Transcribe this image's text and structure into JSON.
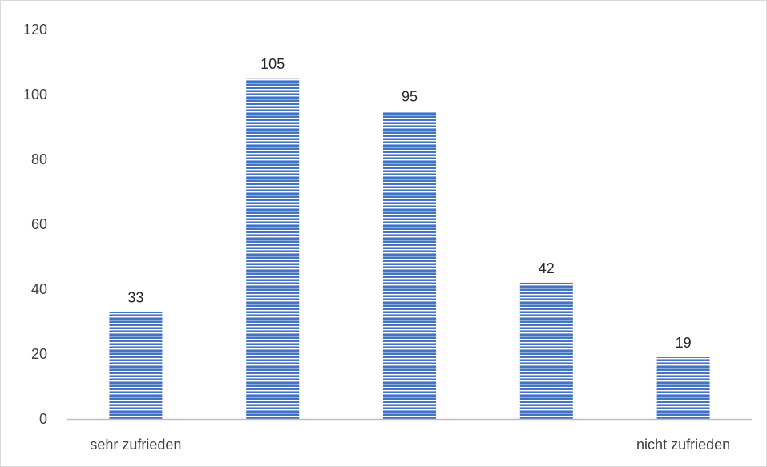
{
  "chart_data": {
    "type": "bar",
    "title": "",
    "xlabel": "",
    "ylabel": "",
    "categories": [
      "sehr zufrieden",
      "",
      "",
      "",
      "nicht zufrieden"
    ],
    "values": [
      33,
      105,
      95,
      42,
      19
    ],
    "data_labels": [
      "33",
      "105",
      "95",
      "42",
      "19"
    ],
    "ylim": [
      0,
      120
    ],
    "yticks": [
      0,
      20,
      40,
      60,
      80,
      100,
      120
    ],
    "ytick_labels": [
      "0",
      "20",
      "40",
      "60",
      "80",
      "100",
      "120"
    ],
    "grid": false,
    "legend": "none",
    "bar_pattern": "horizontal-stripes",
    "colors": {
      "bar_fill": "#4472c4",
      "bar_stripe": "#ffffff",
      "axis_line": "#bfbfbf",
      "frame": "#d9d9d9",
      "tick_text": "#404040",
      "data_label_text": "#262626"
    }
  }
}
